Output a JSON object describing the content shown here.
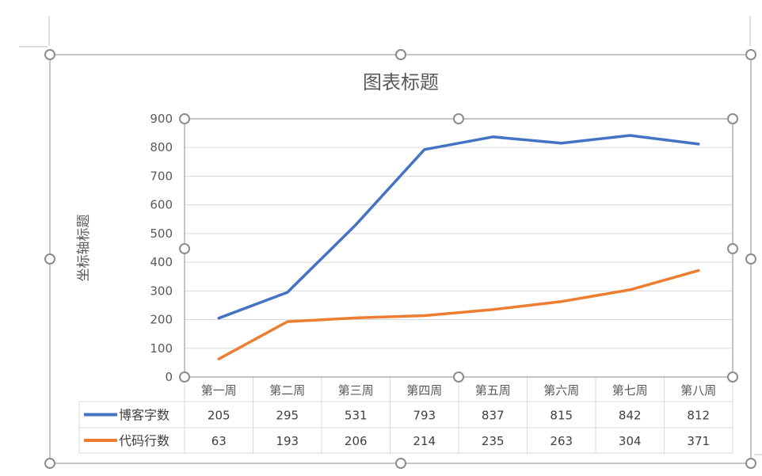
{
  "chart_data": {
    "type": "line",
    "title": "图表标题",
    "ylabel": "坐标轴标题",
    "xlabel": "",
    "ylim": [
      0,
      900
    ],
    "yticks": [
      0,
      100,
      200,
      300,
      400,
      500,
      600,
      700,
      800,
      900
    ],
    "categories": [
      "第一周",
      "第二周",
      "第三周",
      "第四周",
      "第五周",
      "第六周",
      "第七周",
      "第八周"
    ],
    "series": [
      {
        "name": "博客字数",
        "color": "#4472C4",
        "values": [
          205,
          295,
          531,
          793,
          837,
          815,
          842,
          812
        ]
      },
      {
        "name": "代码行数",
        "color": "#ED7D31",
        "values": [
          63,
          193,
          206,
          214,
          235,
          263,
          304,
          371
        ]
      }
    ],
    "grid": true,
    "legend": "data-table"
  }
}
